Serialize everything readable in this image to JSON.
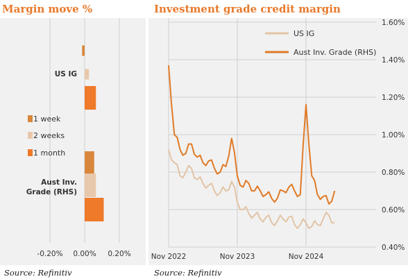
{
  "left": {
    "title": "Margin move %",
    "source": "Source: Refinitiv"
  },
  "right": {
    "title": "Investment grade credit margin",
    "source": "Source: Refinitiv"
  },
  "colors": {
    "accent": "#e8792b",
    "week": "#d9873c",
    "two_weeks": "#e8c8ac",
    "month": "#ee7a2a",
    "us_ig_line": "#e2c4a6",
    "aust_line": "#e07a26"
  },
  "chart_data": [
    {
      "type": "bar",
      "orientation": "horizontal",
      "categories": [
        "US IG",
        "Aust Inv. Grade (RHS)"
      ],
      "series": [
        {
          "name": "1 week",
          "values": [
            -0.015,
            0.055
          ]
        },
        {
          "name": "2 weeks",
          "values": [
            0.025,
            0.065
          ]
        },
        {
          "name": "1 month",
          "values": [
            0.065,
            0.11
          ]
        }
      ],
      "xlim": [
        -0.3,
        0.28
      ],
      "xticks": [
        "-0.20%",
        "0.00%",
        "0.20%"
      ],
      "xtick_values": [
        -0.2,
        0.0,
        0.2
      ],
      "grid": true,
      "legend_position": "center-left"
    },
    {
      "type": "line",
      "title": "Investment grade credit margin",
      "x_range": [
        "2022-11",
        "2025-04"
      ],
      "xticks": [
        "Nov 2022",
        "Nov 2023",
        "Nov 2024"
      ],
      "xtick_values": [
        "2022-11",
        "2023-11",
        "2024-11"
      ],
      "y_axis": "right",
      "ylim": [
        0.4,
        1.6
      ],
      "yticks": [
        "0.40%",
        "0.60%",
        "0.80%",
        "1.00%",
        "1.20%",
        "1.40%",
        "1.60%"
      ],
      "ytick_values": [
        0.4,
        0.6,
        0.8,
        1.0,
        1.2,
        1.4,
        1.6
      ],
      "grid": true,
      "legend_position": "top-center",
      "series": [
        {
          "name": "US IG",
          "x": [
            "2022-11",
            "2022-12",
            "2023-01",
            "2023-02",
            "2023-03",
            "2023-04",
            "2023-05",
            "2023-06",
            "2023-07",
            "2023-08",
            "2023-09",
            "2023-10",
            "2023-11",
            "2023-12",
            "2024-01",
            "2024-02",
            "2024-03",
            "2024-04",
            "2024-05",
            "2024-06",
            "2024-07",
            "2024-08",
            "2024-09",
            "2024-10",
            "2024-11",
            "2024-12",
            "2025-01",
            "2025-02",
            "2025-03",
            "2025-04"
          ],
          "values": [
            0.92,
            0.85,
            0.78,
            0.8,
            0.82,
            0.76,
            0.74,
            0.73,
            0.7,
            0.69,
            0.7,
            0.75,
            0.64,
            0.6,
            0.58,
            0.57,
            0.55,
            0.56,
            0.53,
            0.54,
            0.55,
            0.56,
            0.52,
            0.52,
            0.53,
            0.51,
            0.52,
            0.55,
            0.57,
            0.53
          ]
        },
        {
          "name": "Aust Inv. Grade (RHS)",
          "x": [
            "2022-11",
            "2022-12",
            "2023-01",
            "2023-02",
            "2023-03",
            "2023-04",
            "2023-05",
            "2023-06",
            "2023-07",
            "2023-08",
            "2023-09",
            "2023-10",
            "2023-11",
            "2023-12",
            "2024-01",
            "2024-02",
            "2024-03",
            "2024-04",
            "2024-05",
            "2024-06",
            "2024-07",
            "2024-08",
            "2024-09",
            "2024-10",
            "2024-11",
            "2024-12",
            "2025-01",
            "2025-02",
            "2025-03",
            "2025-04"
          ],
          "values": [
            1.37,
            1.0,
            0.92,
            0.9,
            0.95,
            0.88,
            0.85,
            0.86,
            0.82,
            0.8,
            0.83,
            0.98,
            0.78,
            0.72,
            0.74,
            0.7,
            0.7,
            0.68,
            0.66,
            0.66,
            0.7,
            0.72,
            0.7,
            0.68,
            1.16,
            0.78,
            0.68,
            0.67,
            0.63,
            0.7
          ]
        }
      ]
    }
  ]
}
